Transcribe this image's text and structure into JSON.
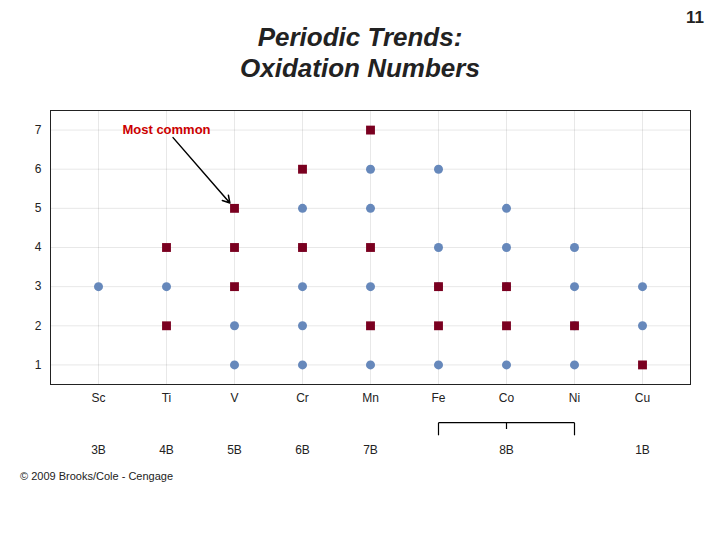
{
  "chart_data": {
    "type": "scatter",
    "title": "Periodic Trends:\nOxidation Numbers",
    "slide_number": "11",
    "caption": "© 2009 Brooks/Cole - Cengage",
    "categories": [
      "Sc",
      "Ti",
      "V",
      "Cr",
      "Mn",
      "Fe",
      "Co",
      "Ni",
      "Cu"
    ],
    "series": [
      {
        "color": "#7a0020",
        "marker": "square",
        "x": [
          "V",
          "Cr",
          "Cr",
          "V",
          "V",
          "Ti",
          "Ti",
          "Mn",
          "Mn",
          "Mn",
          "Fe",
          "Fe",
          "Co",
          "Co",
          "Ni",
          "Cu"
        ],
        "y": [
          5,
          6,
          4,
          4,
          3,
          4,
          2,
          7,
          4,
          2,
          3,
          2,
          3,
          2,
          2,
          1
        ]
      },
      {
        "color": "#6688bb",
        "marker": "circle",
        "x": [
          "Sc",
          "Ti",
          "V",
          "V",
          "Cr",
          "Cr",
          "Cr",
          "Cr",
          "Cr",
          "Mn",
          "Mn",
          "Mn",
          "Mn",
          "Fe",
          "Fe",
          "Fe",
          "Fe",
          "Co",
          "Co",
          "Co",
          "Co",
          "Ni",
          "Ni",
          "Ni",
          "Ni",
          "Cu",
          "Cu"
        ],
        "y": [
          3,
          3,
          2,
          1,
          5,
          4,
          3,
          2,
          1,
          6,
          5,
          3,
          1,
          6,
          4,
          3,
          1,
          5,
          4,
          3,
          1,
          4,
          3,
          2,
          1,
          3,
          2
        ]
      }
    ],
    "ylim": [
      0.5,
      7.5
    ],
    "yticks": [
      1,
      2,
      3,
      4,
      5,
      6,
      7
    ],
    "grid": true,
    "annotations": [
      {
        "text": "Most common",
        "color": "#cc0000",
        "x": "V",
        "y": 5
      }
    ],
    "group_labels": [
      {
        "text": "3B",
        "x": "Sc"
      },
      {
        "text": "4B",
        "x": "Ti"
      },
      {
        "text": "5B",
        "x": "V"
      },
      {
        "text": "6B",
        "x": "Cr"
      },
      {
        "text": "7B",
        "x": "Mn"
      },
      {
        "text": "8B",
        "x": [
          "Fe",
          "Ni"
        ]
      },
      {
        "text": "1B",
        "x": "Cu"
      }
    ]
  }
}
